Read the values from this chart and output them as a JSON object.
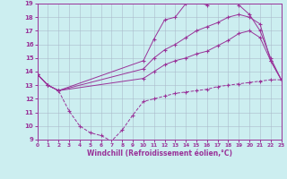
{
  "xlabel": "Windchill (Refroidissement éolien,°C)",
  "xlim": [
    0,
    23
  ],
  "ylim": [
    9,
    19
  ],
  "xticks": [
    0,
    1,
    2,
    3,
    4,
    5,
    6,
    7,
    8,
    9,
    10,
    11,
    12,
    13,
    14,
    15,
    16,
    17,
    18,
    19,
    20,
    21,
    22,
    23
  ],
  "yticks": [
    9,
    10,
    11,
    12,
    13,
    14,
    15,
    16,
    17,
    18,
    19
  ],
  "bg_color": "#cceef0",
  "line_color": "#993399",
  "grid_color": "#aabbcc",
  "curves": [
    {
      "x": [
        0,
        1,
        2,
        3,
        4,
        5,
        6,
        7,
        8,
        9,
        10,
        11,
        12,
        13,
        14,
        15,
        16,
        17,
        18,
        19,
        20,
        21,
        22,
        23
      ],
      "y": [
        13.8,
        13.0,
        12.6,
        11.1,
        10.0,
        9.5,
        9.3,
        8.9,
        9.7,
        10.8,
        11.8,
        12.0,
        12.2,
        12.4,
        12.5,
        12.6,
        12.7,
        12.9,
        13.0,
        13.1,
        13.2,
        13.3,
        13.4,
        13.4
      ],
      "style": "dashed",
      "marker": "+"
    },
    {
      "x": [
        0,
        1,
        2,
        10,
        11,
        12,
        13,
        14,
        15,
        16,
        17,
        18,
        19,
        20,
        21,
        22,
        23
      ],
      "y": [
        13.8,
        13.0,
        12.6,
        13.5,
        14.0,
        14.5,
        14.8,
        15.0,
        15.3,
        15.5,
        15.9,
        16.3,
        16.8,
        17.0,
        16.5,
        14.8,
        13.4
      ],
      "style": "solid",
      "marker": "+"
    },
    {
      "x": [
        0,
        1,
        2,
        10,
        11,
        12,
        13,
        14,
        15,
        16,
        17,
        18,
        19,
        20,
        21,
        22,
        23
      ],
      "y": [
        13.8,
        13.0,
        12.6,
        14.2,
        15.0,
        15.6,
        16.0,
        16.5,
        17.0,
        17.3,
        17.6,
        18.0,
        18.2,
        18.0,
        17.5,
        14.8,
        13.4
      ],
      "style": "solid",
      "marker": "+"
    },
    {
      "x": [
        0,
        1,
        2,
        10,
        11,
        12,
        13,
        14,
        15,
        16,
        17,
        18,
        19,
        20,
        21,
        22,
        23
      ],
      "y": [
        13.8,
        13.0,
        12.6,
        14.8,
        16.4,
        17.8,
        18.0,
        19.0,
        19.1,
        18.9,
        19.2,
        19.4,
        18.9,
        18.2,
        17.0,
        15.0,
        13.4
      ],
      "style": "solid",
      "marker": "+"
    }
  ]
}
